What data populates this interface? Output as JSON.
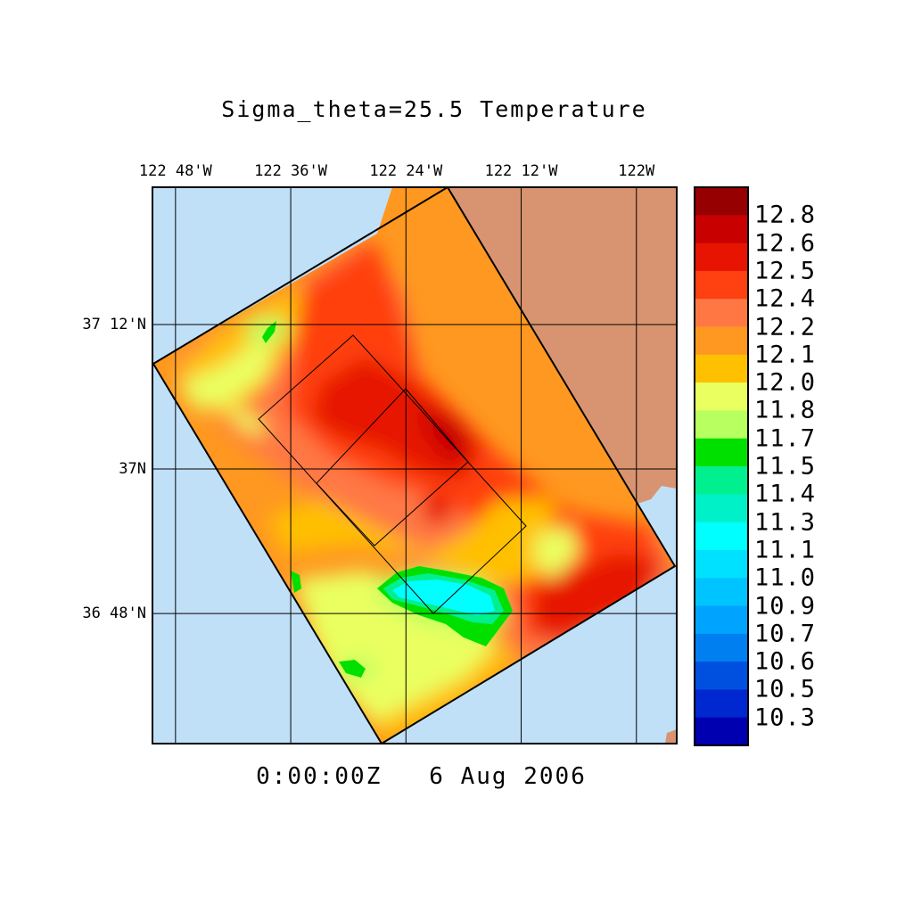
{
  "title": "Sigma_theta=25.5 Temperature",
  "timestamp": "0:00:00Z   6 Aug 2006",
  "lon_labels": [
    {
      "text": "122 48'W",
      "lon": -122.8
    },
    {
      "text": "122 36'W",
      "lon": -122.6
    },
    {
      "text": "122 24'W",
      "lon": -122.4
    },
    {
      "text": "122 12'W",
      "lon": -122.2
    },
    {
      "text": "122W",
      "lon": -122.0
    }
  ],
  "lat_labels": [
    {
      "text": "37 12'N",
      "lat": 37.2
    },
    {
      "text": "37N",
      "lat": 37.0
    },
    {
      "text": "36 48'N",
      "lat": 36.8
    }
  ],
  "extent": {
    "lon_min": -122.84,
    "lon_max": -121.93,
    "lat_min": 36.62,
    "lat_max": 37.39
  },
  "colorbar": {
    "labels": [
      "12.8",
      "12.6",
      "12.5",
      "12.4",
      "12.2",
      "12.1",
      "12.0",
      "11.8",
      "11.7",
      "11.5",
      "11.4",
      "11.3",
      "11.1",
      "11.0",
      "10.9",
      "10.7",
      "10.6",
      "10.5",
      "10.3"
    ],
    "colors": [
      "#960000",
      "#c80000",
      "#e61400",
      "#ff4010",
      "#ff7844",
      "#ff9820",
      "#ffc000",
      "#eaff60",
      "#b8ff60",
      "#00e000",
      "#00f090",
      "#00f0c8",
      "#00ffff",
      "#00e0ff",
      "#00c4ff",
      "#00a4ff",
      "#0080f0",
      "#0050e0",
      "#0028d0",
      "#0000b0"
    ]
  },
  "colors": {
    "ocean": "#c0e0f8",
    "land": "#d89470",
    "frame": "#000000"
  }
}
